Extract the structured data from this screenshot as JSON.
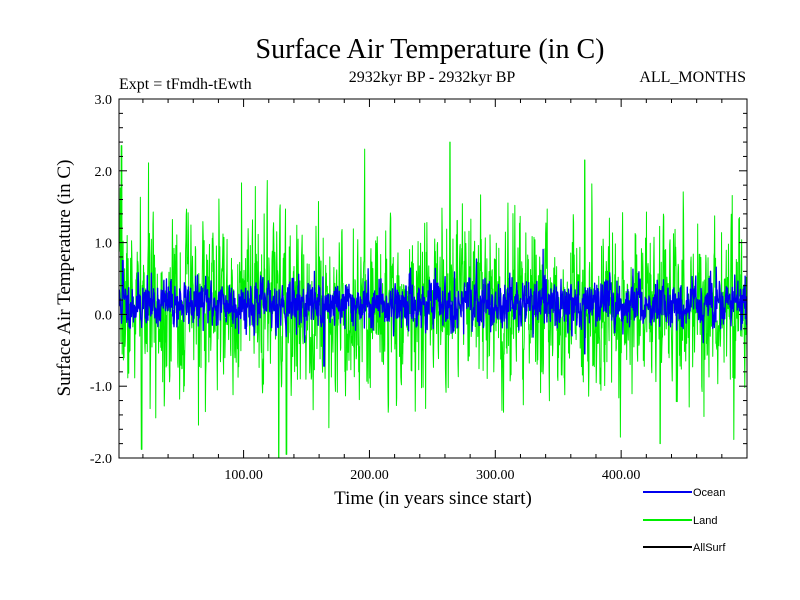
{
  "chart_data": {
    "type": "line",
    "title": "Surface Air Temperature (in C)",
    "subtitle_left": "Expt = tFmdh-tEwth",
    "subtitle_center": "2932kyr BP - 2932kyr BP",
    "subtitle_right": "ALL_MONTHS",
    "xlabel": "Time (in years since start)",
    "ylabel": "Surface Air Temperature (in C)",
    "xlim": [
      1,
      500
    ],
    "ylim": [
      -2.0,
      3.0
    ],
    "x_ticks": [
      {
        "value": 100,
        "label": "100.00"
      },
      {
        "value": 200,
        "label": "200.00"
      },
      {
        "value": 300,
        "label": "300.00"
      },
      {
        "value": 400,
        "label": "400.00"
      }
    ],
    "y_ticks": [
      {
        "value": -2.0,
        "label": "-2.0"
      },
      {
        "value": -1.0,
        "label": "-1.0"
      },
      {
        "value": 0.0,
        "label": "0.0"
      },
      {
        "value": 1.0,
        "label": "1.0"
      },
      {
        "value": 2.0,
        "label": "2.0"
      },
      {
        "value": 3.0,
        "label": "3.0"
      }
    ],
    "series": [
      {
        "name": "Land",
        "color": "#00ee00",
        "approx": {
          "mean": 0.12,
          "std": 0.58,
          "n": 2000,
          "seed": 7
        },
        "peaks": [
          [
            3,
            2.35
          ],
          [
            128,
            -2.0
          ],
          [
            134,
            -1.95
          ],
          [
            264,
            2.4
          ],
          [
            371,
            2.15
          ],
          [
            431,
            -1.8
          ],
          [
            19,
            -1.88
          ]
        ]
      },
      {
        "name": "Ocean",
        "color": "#0000ee",
        "approx": {
          "mean": 0.15,
          "std": 0.17,
          "n": 2000,
          "seed": 11
        },
        "peaks": [
          [
            4,
            0.75
          ],
          [
            164,
            -0.72
          ],
          [
            371,
            -0.55
          ],
          [
            470,
            0.5
          ]
        ]
      },
      {
        "name": "AllSurf",
        "color": "#000000",
        "approx": null,
        "peaks": []
      }
    ],
    "legend": [
      {
        "label": "Ocean",
        "color": "#0000ee"
      },
      {
        "label": "Land",
        "color": "#00ee00"
      },
      {
        "label": "AllSurf",
        "color": "#000000"
      }
    ]
  }
}
